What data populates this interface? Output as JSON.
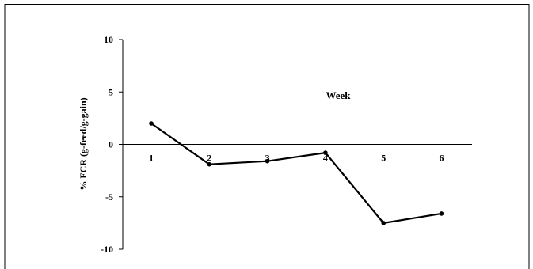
{
  "chart_data": {
    "type": "line",
    "title": "",
    "xlabel": "Week",
    "ylabel": "% FCR  (g-feed/g-gain)",
    "x": [
      1,
      2,
      3,
      4,
      5,
      6
    ],
    "categories": [
      "1",
      "2",
      "3",
      "4",
      "5",
      "6"
    ],
    "series": [
      {
        "values": [
          2.0,
          -1.9,
          -1.6,
          -0.8,
          -7.5,
          -6.6
        ]
      }
    ],
    "ylim": [
      -10,
      10
    ],
    "yticks": [
      10,
      5,
      0,
      -5,
      -10
    ],
    "grid": false,
    "legend": "none",
    "line_color": "#000000"
  }
}
